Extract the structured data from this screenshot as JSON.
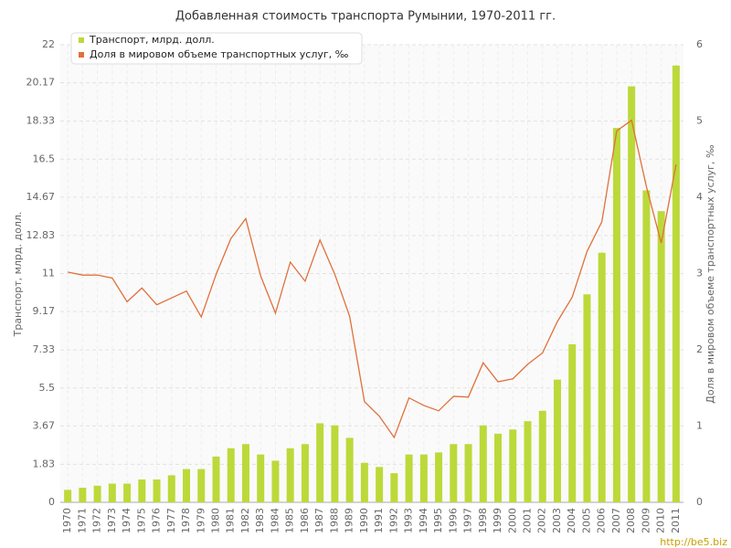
{
  "chart_data": {
    "type": "bar-line",
    "title": "Добавленная стоимость транспорта Румынии, 1970-2011 гг.",
    "ylabel": "Транспорт, млрд. долл.",
    "y2label": "Доля в мировом объеме транспортных услуг, ‰",
    "watermark": "http://be5.biz",
    "categories": [
      "1970",
      "1971",
      "1972",
      "1973",
      "1974",
      "1975",
      "1976",
      "1977",
      "1978",
      "1979",
      "1980",
      "1981",
      "1982",
      "1983",
      "1984",
      "1985",
      "1986",
      "1987",
      "1988",
      "1989",
      "1990",
      "1991",
      "1992",
      "1993",
      "1994",
      "1995",
      "1996",
      "1997",
      "1998",
      "1999",
      "2000",
      "2001",
      "2002",
      "2003",
      "2004",
      "2005",
      "2006",
      "2007",
      "2008",
      "2009",
      "2010",
      "2011"
    ],
    "series": [
      {
        "name": "Транспорт, млрд. долл.",
        "color": "#bcd93a",
        "kind": "bar",
        "values": [
          0.6,
          0.7,
          0.8,
          0.9,
          0.9,
          1.1,
          1.1,
          1.3,
          1.6,
          1.6,
          2.2,
          2.6,
          2.8,
          2.3,
          2.0,
          2.6,
          2.8,
          3.8,
          3.7,
          3.1,
          1.9,
          1.7,
          1.4,
          2.3,
          2.3,
          2.4,
          2.8,
          2.8,
          3.7,
          3.3,
          3.5,
          3.9,
          4.4,
          5.9,
          7.6,
          10.0,
          12.0,
          18.0,
          20.0,
          15.0,
          14.0,
          21.0
        ]
      },
      {
        "name": "Доля в мировом объеме транспортных услуг, ‰",
        "color": "#e0703c",
        "kind": "line",
        "axis": "y2",
        "values": [
          3.02,
          2.98,
          2.98,
          2.94,
          2.63,
          2.81,
          2.59,
          2.68,
          2.77,
          2.43,
          2.99,
          3.46,
          3.72,
          2.97,
          2.48,
          3.15,
          2.9,
          3.44,
          2.99,
          2.44,
          1.32,
          1.13,
          0.85,
          1.37,
          1.27,
          1.2,
          1.39,
          1.38,
          1.83,
          1.58,
          1.62,
          1.81,
          1.96,
          2.37,
          2.69,
          3.29,
          3.68,
          4.87,
          5.01,
          4.14,
          3.4,
          4.43
        ]
      }
    ],
    "ylim": [
      0,
      22
    ],
    "yticks": [
      0,
      1.83,
      3.67,
      5.5,
      7.33,
      9.17,
      11,
      12.83,
      14.67,
      16.5,
      18.33,
      20.17,
      22
    ],
    "y2lim": [
      0,
      6
    ],
    "y2ticks": [
      0,
      1,
      2,
      3,
      4,
      5,
      6
    ],
    "grid": true,
    "legend": "top-left"
  }
}
